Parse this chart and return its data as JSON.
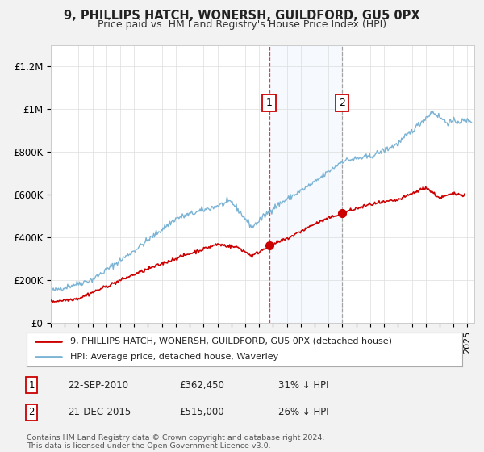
{
  "title": "9, PHILLIPS HATCH, WONERSH, GUILDFORD, GU5 0PX",
  "subtitle": "Price paid vs. HM Land Registry's House Price Index (HPI)",
  "ylabel_ticks": [
    "£0",
    "£200K",
    "£400K",
    "£600K",
    "£800K",
    "£1M",
    "£1.2M"
  ],
  "ytick_values": [
    0,
    200000,
    400000,
    600000,
    800000,
    1000000,
    1200000
  ],
  "ylim": [
    0,
    1300000
  ],
  "xlim_start": 1995.0,
  "xlim_end": 2025.5,
  "hpi_color": "#7ab3d4",
  "price_color": "#cc0000",
  "shade_color": "#ddeeff",
  "transaction1_date": 2010.72,
  "transaction1_price": 362450,
  "transaction1_label": "1",
  "transaction2_date": 2015.97,
  "transaction2_price": 515000,
  "transaction2_label": "2",
  "legend_line1": "9, PHILLIPS HATCH, WONERSH, GUILDFORD, GU5 0PX (detached house)",
  "legend_line2": "HPI: Average price, detached house, Waverley",
  "table_row1": [
    "1",
    "22-SEP-2010",
    "£362,450",
    "31% ↓ HPI"
  ],
  "table_row2": [
    "2",
    "21-DEC-2015",
    "£515,000",
    "26% ↓ HPI"
  ],
  "footer": "Contains HM Land Registry data © Crown copyright and database right 2024.\nThis data is licensed under the Open Government Licence v3.0.",
  "background_color": "#f2f2f2",
  "plot_bg_color": "#ffffff"
}
